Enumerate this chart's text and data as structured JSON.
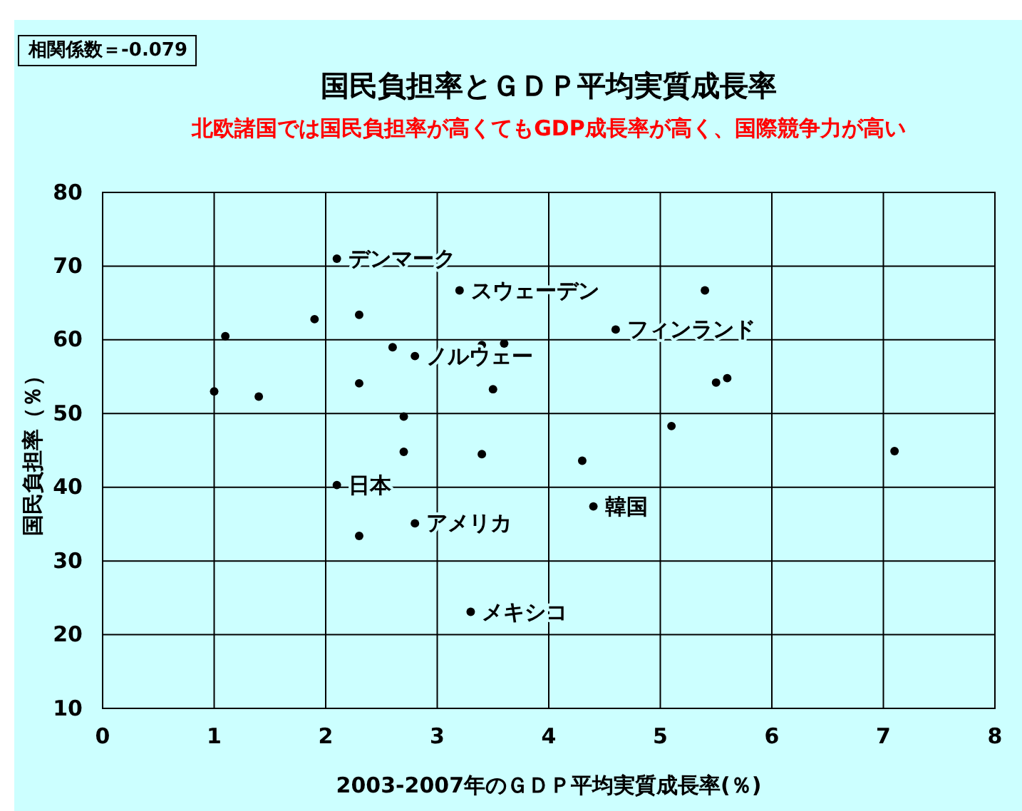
{
  "chart_data": {
    "type": "scatter",
    "title": "国民負担率とＧＤＰ平均実質成長率",
    "subtitle": "北欧諸国では国民負担率が高くてもGDP成長率が高く、国際競争力が高い",
    "xlabel": "2003-2007年のＧＤＰ平均実質成長率(％)",
    "ylabel": "国民負担率（％）",
    "x": [
      2.1,
      1.1,
      1.0,
      1.4,
      1.9,
      2.3,
      2.3,
      2.6,
      2.8,
      2.7,
      2.7,
      2.1,
      2.3,
      2.8,
      3.2,
      3.4,
      3.6,
      4.6,
      3.5,
      3.4,
      4.3,
      4.4,
      3.3,
      5.4,
      5.5,
      5.6,
      5.1,
      7.1
    ],
    "series": [
      {
        "color": "#000000",
        "values": [
          71,
          60.5,
          53,
          52.3,
          62.8,
          63.4,
          54.1,
          59,
          57.8,
          49.6,
          44.8,
          40.3,
          33.4,
          35.1,
          66.7,
          59.3,
          59.5,
          61.4,
          53.3,
          44.5,
          43.6,
          37.4,
          23.1,
          66.7,
          54.2,
          54.8,
          48.3,
          44.9
        ]
      }
    ],
    "xlim": [
      0,
      8
    ],
    "xticks": [
      0,
      1,
      2,
      3,
      4,
      5,
      6,
      7,
      8
    ],
    "ylim": [
      10,
      80
    ],
    "yticks": [
      10,
      20,
      30,
      40,
      50,
      60,
      70,
      80
    ],
    "grid": true,
    "marker": "circle",
    "annotations": [
      "相関係数＝-0.079",
      {
        "text": "デンマーク",
        "x": 2.1,
        "y": 71
      },
      {
        "text": "スウェーデン",
        "x": 3.2,
        "y": 66.7
      },
      {
        "text": "フィンランド",
        "x": 4.6,
        "y": 61.4
      },
      {
        "text": "ノルウェー",
        "x": 2.8,
        "y": 57.8
      },
      {
        "text": "日本",
        "x": 2.1,
        "y": 40.3
      },
      {
        "text": "アメリカ",
        "x": 2.8,
        "y": 35.1
      },
      {
        "text": "韓国",
        "x": 4.4,
        "y": 37.4
      },
      {
        "text": "メキシコ",
        "x": 3.3,
        "y": 23.1
      }
    ]
  }
}
